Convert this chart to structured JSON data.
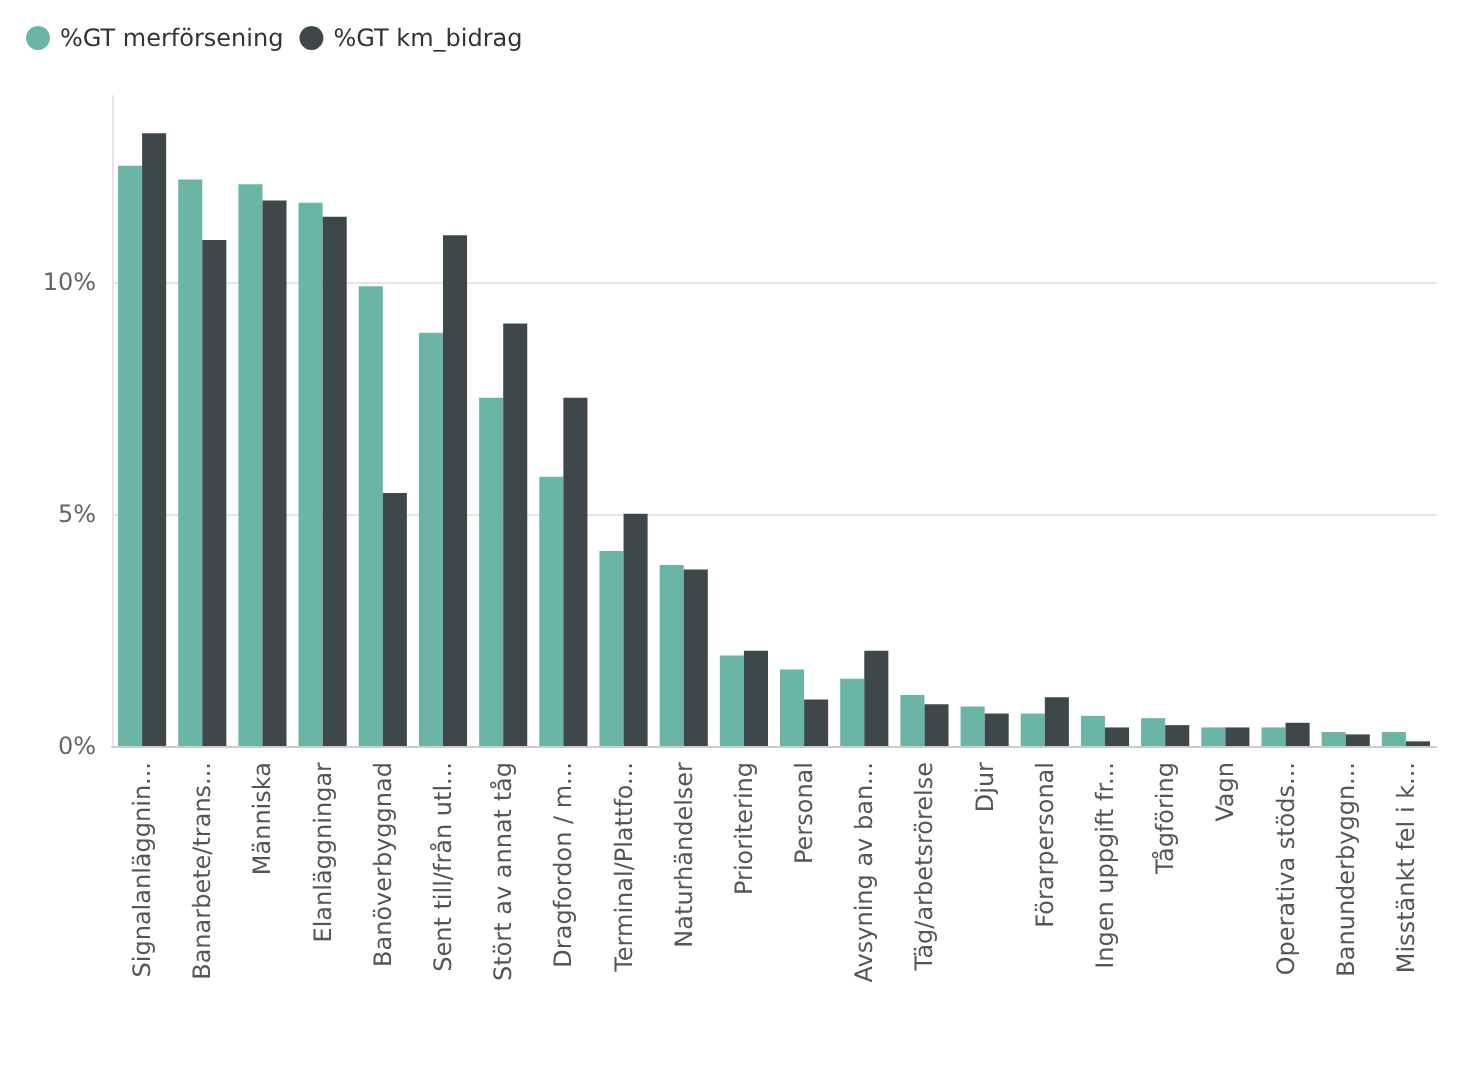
{
  "chart_data": {
    "type": "bar",
    "categories": [
      "Signalanläggnin...",
      "Banarbete/trans...",
      "Människa",
      "Elanläggningar",
      "Banöverbyggnad",
      "Sent till/från utl...",
      "Stört av annat tåg",
      "Dragfordon / m...",
      "Terminal/Plattfo...",
      "Naturhändelser",
      "Prioritering",
      "Personal",
      "Avsyning av ban...",
      "Täg/arbetsrörelse",
      "Djur",
      "Förarpersonal",
      "Ingen uppgift fr...",
      "Tågföring",
      "Vagn",
      "Operativa stöds...",
      "Banunderbyggn...",
      "Misstänkt fel i k..."
    ],
    "series": [
      {
        "name": "%GT merförsening",
        "color": "#6bb5a6",
        "values": [
          12.5,
          12.2,
          12.1,
          11.7,
          9.9,
          8.9,
          7.5,
          5.8,
          4.2,
          3.9,
          1.95,
          1.65,
          1.45,
          1.1,
          0.85,
          0.7,
          0.65,
          0.6,
          0.4,
          0.4,
          0.3,
          0.3
        ]
      },
      {
        "name": "%GT km_bidrag",
        "color": "#3e484b",
        "values": [
          13.2,
          10.9,
          11.75,
          11.4,
          5.45,
          11.0,
          9.1,
          7.5,
          5.0,
          3.8,
          2.05,
          1.0,
          2.05,
          0.9,
          0.7,
          1.05,
          0.4,
          0.45,
          0.4,
          0.5,
          0.25,
          0.1
        ]
      }
    ],
    "ylim": [
      0,
      14
    ],
    "yticks": [
      {
        "value": 0,
        "label": "0%"
      },
      {
        "value": 5,
        "label": "5%"
      },
      {
        "value": 10,
        "label": "10%"
      }
    ],
    "grid": "y",
    "legend": "top left"
  }
}
